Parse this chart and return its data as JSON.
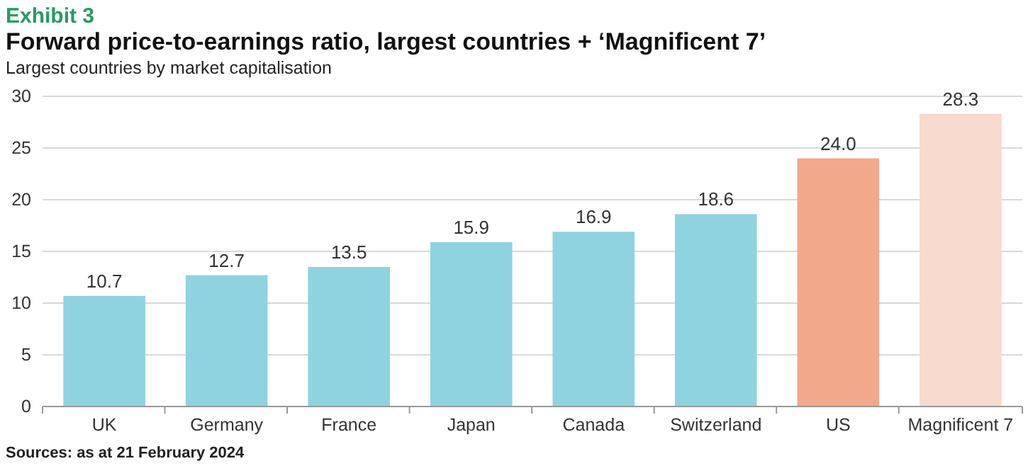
{
  "chart_data": {
    "type": "bar",
    "title": "Forward price-to-earnings ratio, largest countries + ‘Magnificent 7’",
    "subtitle": "Largest countries by market capitalisation",
    "annotations": [
      "Exhibit 3",
      "Sources: as at 21 February 2024"
    ],
    "categories": [
      "UK",
      "Germany",
      "France",
      "Japan",
      "Canada",
      "Switzerland",
      "US",
      "Magnificent 7"
    ],
    "values": [
      10.7,
      12.7,
      13.5,
      15.9,
      16.9,
      18.6,
      24.0,
      28.3
    ],
    "value_labels": [
      "10.7",
      "12.7",
      "13.5",
      "15.9",
      "16.9",
      "18.6",
      "24.0",
      "28.3"
    ],
    "colors": [
      "#8fd3e0",
      "#8fd3e0",
      "#8fd3e0",
      "#8fd3e0",
      "#8fd3e0",
      "#8fd3e0",
      "#f2a88b",
      "#f8d9cd"
    ],
    "ylim": [
      0,
      30
    ],
    "yticks": [
      0,
      5,
      10,
      15,
      20,
      25,
      30
    ],
    "grid": "y"
  }
}
